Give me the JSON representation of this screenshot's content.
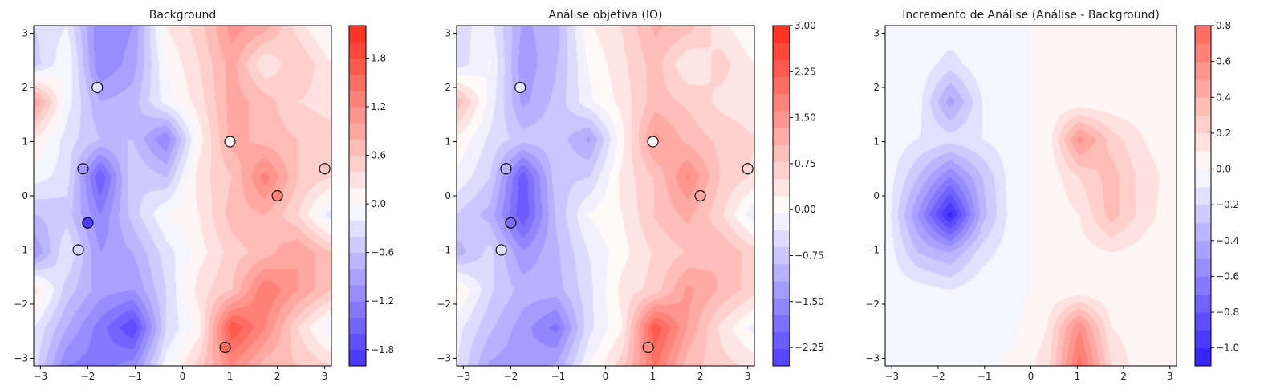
{
  "chart_data": {
    "type": "heatmap",
    "subtype": "filled-contour",
    "grid": {
      "x": [
        -3.1416,
        -2.4435,
        -1.7453,
        -1.0472,
        -0.3491,
        0.3491,
        1.0472,
        1.7453,
        2.4435,
        3.1416
      ],
      "y": [
        3.1416,
        2.4435,
        1.7453,
        1.0472,
        0.3491,
        -0.3491,
        -1.0472,
        -1.7453,
        -2.4435,
        -3.1416
      ]
    },
    "background_values": [
      [
        -0.4,
        -0.2,
        -1.2,
        -1.0,
        0.2,
        0.5,
        1.1,
        0.9,
        0.3,
        -0.1
      ],
      [
        -0.5,
        0.0,
        -1.2,
        -0.9,
        0.0,
        0.4,
        0.9,
        0.2,
        0.6,
        0.2
      ],
      [
        1.0,
        -0.1,
        -0.8,
        -0.7,
        -0.1,
        0.3,
        0.9,
        0.7,
        0.4,
        0.3
      ],
      [
        0.2,
        -0.3,
        -0.6,
        -0.6,
        -1.2,
        0.1,
        0.9,
        0.7,
        0.6,
        0.5
      ],
      [
        -0.1,
        -0.3,
        -1.6,
        -0.4,
        -0.6,
        0.3,
        0.6,
        1.3,
        0.6,
        0.4
      ],
      [
        -0.6,
        -0.5,
        -1.2,
        -0.5,
        0.0,
        0.2,
        0.7,
        0.8,
        0.4,
        -0.3
      ],
      [
        -1.0,
        -0.2,
        -1.0,
        -0.8,
        -0.3,
        0.1,
        0.5,
        0.7,
        1.0,
        0.6
      ],
      [
        0.3,
        -0.5,
        -0.9,
        -1.0,
        -0.4,
        0.3,
        0.6,
        1.4,
        1.0,
        0.6
      ],
      [
        -0.2,
        -0.8,
        -1.3,
        -1.8,
        -0.4,
        0.1,
        1.8,
        1.2,
        0.4,
        -0.2
      ],
      [
        -0.3,
        -1.2,
        -1.3,
        -1.1,
        -0.1,
        0.5,
        1.2,
        0.7,
        0.6,
        0.4
      ]
    ],
    "increment_values": [
      [
        -0.02,
        -0.02,
        -0.02,
        -0.02,
        -0.02,
        0.02,
        0.02,
        0.02,
        0.02,
        0.02
      ],
      [
        -0.02,
        -0.02,
        -0.15,
        -0.02,
        -0.02,
        0.02,
        0.02,
        0.02,
        0.02,
        0.02
      ],
      [
        -0.02,
        -0.05,
        -0.45,
        -0.1,
        -0.02,
        0.02,
        0.02,
        0.02,
        0.02,
        0.02
      ],
      [
        -0.02,
        -0.1,
        -0.15,
        -0.1,
        -0.02,
        0.02,
        0.55,
        0.25,
        0.1,
        0.02
      ],
      [
        -0.02,
        -0.3,
        -0.6,
        -0.3,
        -0.02,
        0.02,
        0.2,
        0.35,
        0.15,
        0.05
      ],
      [
        -0.02,
        -0.5,
        -1.05,
        -0.35,
        -0.02,
        0.02,
        0.1,
        0.35,
        0.15,
        0.02
      ],
      [
        -0.02,
        -0.3,
        -0.4,
        -0.15,
        -0.02,
        0.02,
        0.05,
        0.1,
        0.05,
        0.02
      ],
      [
        -0.02,
        -0.05,
        -0.1,
        -0.02,
        -0.02,
        0.02,
        0.02,
        0.02,
        0.02,
        0.02
      ],
      [
        -0.02,
        -0.02,
        -0.02,
        -0.02,
        -0.02,
        0.1,
        0.6,
        0.1,
        0.02,
        0.02
      ],
      [
        -0.02,
        -0.02,
        -0.02,
        -0.02,
        0.02,
        0.15,
        0.75,
        0.2,
        0.02,
        0.02
      ]
    ],
    "observations": {
      "x": [
        -1.8,
        -2.1,
        -2.0,
        -2.2,
        1.0,
        3.0,
        2.0,
        0.9
      ],
      "y": [
        2.0,
        0.5,
        -0.5,
        -1.0,
        1.0,
        0.5,
        0.0,
        -2.8
      ],
      "values": [
        -0.3,
        -1.0,
        -1.9,
        -0.4,
        0.1,
        0.6,
        1.3,
        1.6
      ]
    },
    "xlim": [
      -3.1416,
      3.1416
    ],
    "ylim": [
      -3.1416,
      3.1416
    ],
    "axis_ticks": [
      -3,
      -2,
      -1,
      0,
      1,
      2,
      3
    ],
    "axis_tick_labels": [
      "−3",
      "−2",
      "−1",
      "0",
      "1",
      "2",
      "3"
    ],
    "panels": [
      {
        "title": "Background",
        "field": "background",
        "show_observations": true,
        "levels_range": [
          -2.0,
          2.2
        ],
        "level_step": 0.2,
        "colorbar_ticks": [
          -1.8,
          -1.2,
          -0.6,
          0.0,
          0.6,
          1.2,
          1.8
        ],
        "colorbar_tick_labels": [
          "−1.8",
          "−1.2",
          "−0.6",
          "0.0",
          "0.6",
          "1.2",
          "1.8"
        ]
      },
      {
        "title": "Análise objetiva (IO)",
        "field": "analysis",
        "show_observations": true,
        "levels_range": [
          -2.55,
          3.0
        ],
        "level_step": 0.2775,
        "colorbar_ticks": [
          -2.25,
          -1.5,
          -0.75,
          0.0,
          0.75,
          1.5,
          2.25,
          3.0
        ],
        "colorbar_tick_labels": [
          "−2.25",
          "−1.50",
          "−0.75",
          "0.00",
          "0.75",
          "1.50",
          "2.25",
          "3.00"
        ]
      },
      {
        "title": "Incremento de Análise (Análise - Background)",
        "field": "increment",
        "show_observations": false,
        "levels_range": [
          -1.1,
          0.8
        ],
        "level_step": 0.1,
        "colorbar_ticks": [
          -1.0,
          -0.8,
          -0.6,
          -0.4,
          -0.2,
          0.0,
          0.2,
          0.4,
          0.6,
          0.8
        ],
        "colorbar_tick_labels": [
          "−1.0",
          "−0.8",
          "−0.6",
          "−0.4",
          "−0.2",
          "0.0",
          "0.2",
          "0.4",
          "0.6",
          "0.8"
        ]
      }
    ],
    "colormap": {
      "negative": "#2d1aff",
      "zero": "#ffffff",
      "positive": "#ff2a1a"
    }
  }
}
